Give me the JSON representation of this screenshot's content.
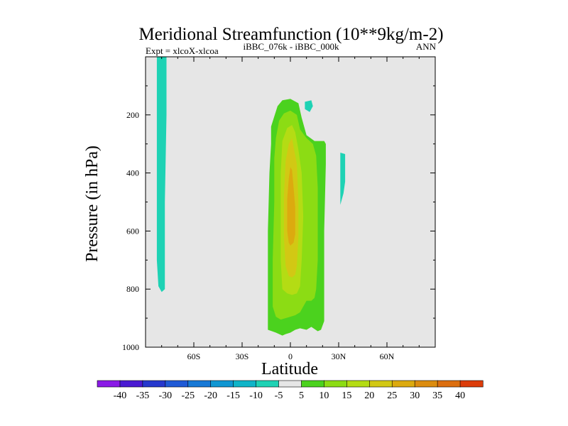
{
  "chart_data": {
    "type": "contour",
    "title": "Meridional Streamfunction (10**9kg/m-2)",
    "subtitle_left": "Expt = xlcoX-xlcoa",
    "subtitle_center": "iBBC_076k - iBBC_000k",
    "subtitle_right": "ANN",
    "xlabel": "Latitude",
    "ylabel": "Pressure (in hPa)",
    "x_axis": {
      "range": [
        -90,
        90
      ],
      "ticks": [
        -60,
        -30,
        0,
        30,
        60
      ],
      "tick_labels": [
        "60S",
        "30S",
        "0",
        "30N",
        "60N"
      ]
    },
    "y_axis": {
      "range": [
        1000,
        0
      ],
      "ticks": [
        200,
        400,
        600,
        800,
        1000
      ],
      "tick_labels": [
        "200",
        "400",
        "600",
        "800",
        "1000"
      ]
    },
    "background_color": "#e6e6e6",
    "colorbar": {
      "levels": [
        "-40",
        "-35",
        "-30",
        "-25",
        "-20",
        "-15",
        "-10",
        "-5",
        "5",
        "10",
        "15",
        "20",
        "25",
        "30",
        "35",
        "40"
      ],
      "colors": [
        "#8a1ae6",
        "#4a1ad2",
        "#2638cd",
        "#1f5ad6",
        "#1779d6",
        "#0f96d2",
        "#0fb4c8",
        "#1ed2b4",
        "#e6e6e6",
        "#4bd21e",
        "#8cdc14",
        "#b4dc14",
        "#d2c814",
        "#dcaa0f",
        "#dc8c0f",
        "#dc6e0f",
        "#dc3c0a"
      ]
    },
    "regions": [
      {
        "level": "-10 to -5",
        "color": "#1ed2b4",
        "points": [
          [
            -83,
            0
          ],
          [
            -77,
            0
          ],
          [
            -77,
            200
          ],
          [
            -78,
            500
          ],
          [
            -78,
            800
          ],
          [
            -80,
            810
          ],
          [
            -82,
            790
          ],
          [
            -83,
            700
          ],
          [
            -83,
            300
          ]
        ]
      },
      {
        "level": "-10 to -5",
        "color": "#1ed2b4",
        "points": [
          [
            9,
            155
          ],
          [
            13,
            150
          ],
          [
            14,
            170
          ],
          [
            12,
            190
          ],
          [
            9,
            180
          ]
        ]
      },
      {
        "level": "-10 to -5",
        "color": "#1ed2b4",
        "points": [
          [
            31,
            330
          ],
          [
            34,
            335
          ],
          [
            34,
            430
          ],
          [
            33,
            470
          ],
          [
            31,
            510
          ]
        ]
      },
      {
        "level": "5 to 10",
        "color": "#4bd21e",
        "points": [
          [
            -12,
            240
          ],
          [
            -8,
            170
          ],
          [
            -5,
            150
          ],
          [
            0,
            145
          ],
          [
            5,
            160
          ],
          [
            7,
            210
          ],
          [
            10,
            270
          ],
          [
            15,
            290
          ],
          [
            21,
            290
          ],
          [
            22,
            300
          ],
          [
            22,
            370
          ],
          [
            21,
            600
          ],
          [
            21,
            800
          ],
          [
            21,
            910
          ],
          [
            19,
            940
          ],
          [
            17,
            945
          ],
          [
            13,
            930
          ],
          [
            10,
            940
          ],
          [
            6,
            935
          ],
          [
            3,
            940
          ],
          [
            0,
            950
          ],
          [
            -3,
            955
          ],
          [
            -5,
            960
          ],
          [
            -9,
            950
          ],
          [
            -14,
            940
          ],
          [
            -14,
            890
          ],
          [
            -14,
            600
          ],
          [
            -13,
            400
          ],
          [
            -12,
            300
          ]
        ]
      },
      {
        "level": "10 to 15",
        "color": "#8cdc14",
        "points": [
          [
            -9,
            280
          ],
          [
            -7,
            220
          ],
          [
            -4,
            195
          ],
          [
            0,
            185
          ],
          [
            4,
            200
          ],
          [
            6,
            250
          ],
          [
            10,
            280
          ],
          [
            14,
            300
          ],
          [
            16,
            340
          ],
          [
            17,
            450
          ],
          [
            17,
            700
          ],
          [
            16,
            800
          ],
          [
            15,
            830
          ],
          [
            13,
            840
          ],
          [
            10,
            840
          ],
          [
            8,
            860
          ],
          [
            6,
            880
          ],
          [
            3,
            890
          ],
          [
            0,
            895
          ],
          [
            -3,
            900
          ],
          [
            -6,
            905
          ],
          [
            -9,
            895
          ],
          [
            -11,
            860
          ],
          [
            -11,
            700
          ],
          [
            -10,
            500
          ],
          [
            -10,
            350
          ]
        ]
      },
      {
        "level": "15 to 20",
        "color": "#b4dc14",
        "points": [
          [
            -5,
            290
          ],
          [
            -2,
            245
          ],
          [
            1,
            235
          ],
          [
            3,
            260
          ],
          [
            5,
            320
          ],
          [
            7,
            400
          ],
          [
            8,
            550
          ],
          [
            7,
            700
          ],
          [
            6,
            790
          ],
          [
            4,
            815
          ],
          [
            1,
            820
          ],
          [
            -2,
            815
          ],
          [
            -5,
            800
          ],
          [
            -6,
            700
          ],
          [
            -6,
            500
          ],
          [
            -6,
            400
          ]
        ]
      },
      {
        "level": "20 to 25",
        "color": "#d2c814",
        "points": [
          [
            -3,
            360
          ],
          [
            -1,
            300
          ],
          [
            1,
            280
          ],
          [
            2,
            310
          ],
          [
            4,
            370
          ],
          [
            5,
            500
          ],
          [
            5,
            620
          ],
          [
            4,
            720
          ],
          [
            3,
            750
          ],
          [
            1,
            760
          ],
          [
            -1,
            755
          ],
          [
            -3,
            720
          ],
          [
            -4,
            620
          ],
          [
            -4,
            480
          ]
        ]
      },
      {
        "level": "25 to 30",
        "color": "#dcaa0f",
        "points": [
          [
            -2,
            490
          ],
          [
            -1,
            420
          ],
          [
            0,
            380
          ],
          [
            1,
            390
          ],
          [
            2,
            450
          ],
          [
            3,
            520
          ],
          [
            3,
            610
          ],
          [
            2,
            640
          ],
          [
            0,
            650
          ],
          [
            -1,
            640
          ],
          [
            -2,
            600
          ]
        ]
      }
    ]
  }
}
